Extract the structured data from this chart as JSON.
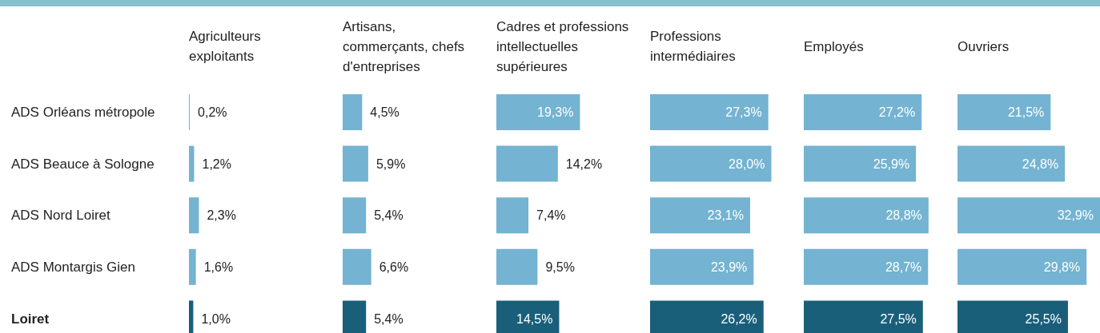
{
  "chart_data": [
    {
      "type": "bar",
      "orientation": "horizontal",
      "title": "Agriculteurs exploitants",
      "categories": [
        "ADS Orléans métropole",
        "ADS Beauce à Sologne",
        "ADS Nord Loiret",
        "ADS Montargis Gien",
        "Loiret"
      ],
      "values": [
        0.2,
        1.2,
        2.3,
        1.6,
        1.0
      ],
      "value_labels": [
        "0,2%",
        "1,2%",
        "2,3%",
        "1,6%",
        "1,0%"
      ],
      "colors": [
        "#74b3d1",
        "#74b3d1",
        "#74b3d1",
        "#74b3d1",
        "#1a5f7a"
      ],
      "tick_labels": "y"
    },
    {
      "type": "bar",
      "orientation": "horizontal",
      "title": "Artisans, commerçants, chefs d'entreprises",
      "categories": [
        null,
        null,
        null,
        null,
        null
      ],
      "values": [
        4.5,
        5.9,
        5.4,
        6.6,
        5.4
      ],
      "value_labels": [
        "4,5%",
        "5,9%",
        "5,4%",
        "6,6%",
        "5,4%"
      ],
      "colors": [
        "#74b3d1",
        "#74b3d1",
        "#74b3d1",
        "#74b3d1",
        "#1a5f7a"
      ],
      "tick_labels": false
    },
    {
      "type": "bar",
      "orientation": "horizontal",
      "title": "Cadres et professions intellectuelles supérieures",
      "categories": [
        null,
        null,
        null,
        null,
        null
      ],
      "values": [
        19.3,
        14.2,
        7.4,
        9.5,
        14.5
      ],
      "value_labels": [
        "19,3%",
        "14,2%",
        "7,4%",
        "9,5%",
        "14,5%"
      ],
      "colors": [
        "#74b3d1",
        "#74b3d1",
        "#74b3d1",
        "#74b3d1",
        "#1a5f7a"
      ],
      "tick_labels": false
    },
    {
      "type": "bar",
      "orientation": "horizontal",
      "title": "Professions intermédiaires",
      "categories": [
        null,
        null,
        null,
        null,
        null
      ],
      "values": [
        27.3,
        28.0,
        23.1,
        23.9,
        26.2
      ],
      "value_labels": [
        "27,3%",
        "28,0%",
        "23,1%",
        "23,9%",
        "26,2%"
      ],
      "colors": [
        "#74b3d1",
        "#74b3d1",
        "#74b3d1",
        "#74b3d1",
        "#1a5f7a"
      ],
      "tick_labels": false
    },
    {
      "type": "bar",
      "orientation": "horizontal",
      "title": "Employés",
      "categories": [
        null,
        null,
        null,
        null,
        null
      ],
      "values": [
        27.2,
        25.9,
        28.8,
        28.7,
        27.5
      ],
      "value_labels": [
        "27,2%",
        "25,9%",
        "28,8%",
        "28,7%",
        "27,5%"
      ],
      "colors": [
        "#74b3d1",
        "#74b3d1",
        "#74b3d1",
        "#74b3d1",
        "#1a5f7a"
      ],
      "tick_labels": false
    },
    {
      "type": "bar",
      "orientation": "horizontal",
      "title": "Ouvriers",
      "categories": [
        null,
        null,
        null,
        null,
        null
      ],
      "values": [
        21.5,
        24.8,
        32.9,
        29.8,
        25.5
      ],
      "value_labels": [
        "21,5%",
        "24,8%",
        "32,9%",
        "29,8%",
        "25,5%"
      ],
      "colors": [
        "#74b3d1",
        "#74b3d1",
        "#74b3d1",
        "#74b3d1",
        "#1a5f7a"
      ],
      "tick_labels": false
    }
  ]
}
